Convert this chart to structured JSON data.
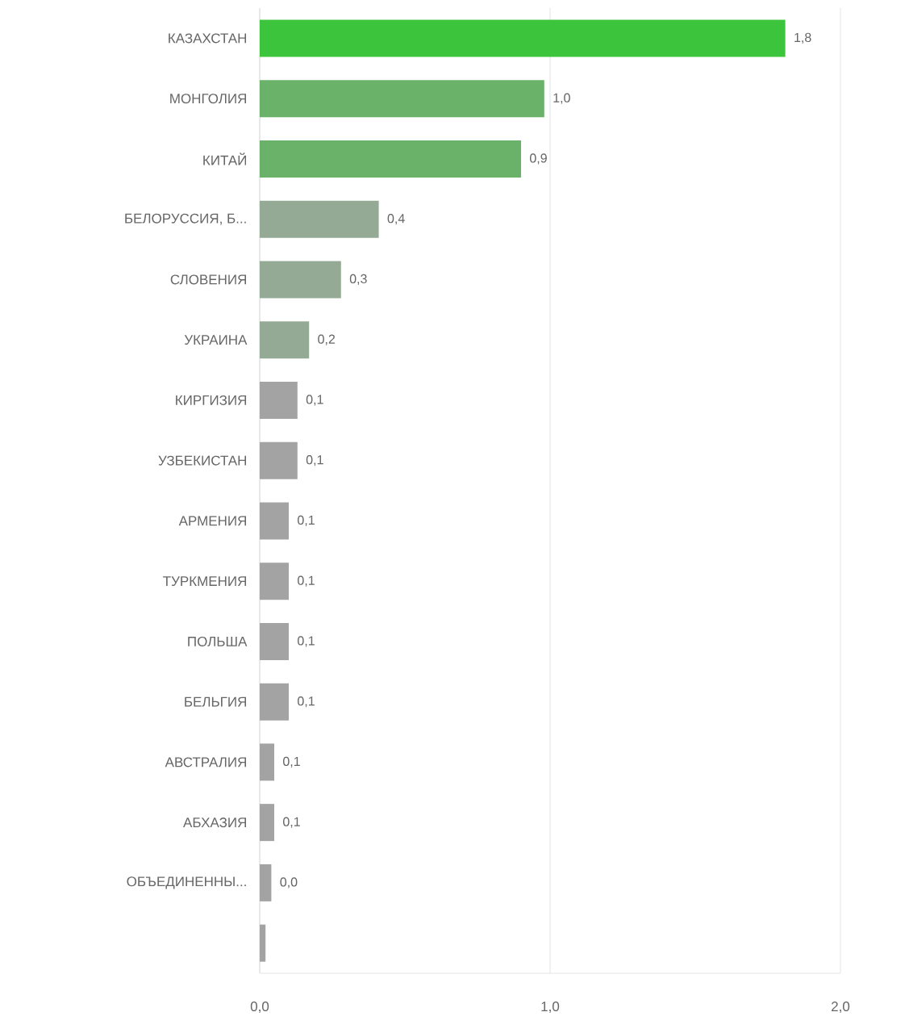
{
  "chart_data": {
    "type": "bar",
    "orientation": "horizontal",
    "categories": [
      "КАЗАХСТАН",
      "МОНГОЛИЯ",
      "КИТАЙ",
      "БЕЛОРУССИЯ, Б...",
      "СЛОВЕНИЯ",
      "УКРАИНА",
      "КИРГИЗИЯ",
      "УЗБЕКИСТАН",
      "АРМЕНИЯ",
      "ТУРКМЕНИЯ",
      "ПОЛЬША",
      "БЕЛЬГИЯ",
      "АВСТРАЛИЯ",
      "АБХАЗИЯ",
      "ОБЪЕДИНЕННЫ...",
      null
    ],
    "values": [
      1.81,
      0.98,
      0.9,
      0.41,
      0.28,
      0.17,
      0.13,
      0.13,
      0.1,
      0.1,
      0.1,
      0.1,
      0.05,
      0.05,
      0.04,
      0.02
    ],
    "value_labels": [
      "1,8",
      "1,0",
      "0,9",
      "0,4",
      "0,3",
      "0,2",
      "0,1",
      "0,1",
      "0,1",
      "0,1",
      "0,1",
      "0,1",
      "0,1",
      "0,1",
      "0,0",
      null
    ],
    "colors": [
      "#3cc43c",
      "#6ab26a",
      "#6ab26a",
      "#95aa95",
      "#95aa95",
      "#95aa95",
      "#a3a3a3",
      "#a3a3a3",
      "#a3a3a3",
      "#a3a3a3",
      "#a3a3a3",
      "#a3a3a3",
      "#a3a3a3",
      "#a3a3a3",
      "#a3a3a3",
      "#a3a3a3"
    ],
    "xlim": [
      0,
      2
    ],
    "xticks": [
      {
        "value": 0,
        "label": "0,0"
      },
      {
        "value": 1,
        "label": "1,0"
      },
      {
        "value": 2,
        "label": "2,0"
      }
    ],
    "grid": "x"
  }
}
